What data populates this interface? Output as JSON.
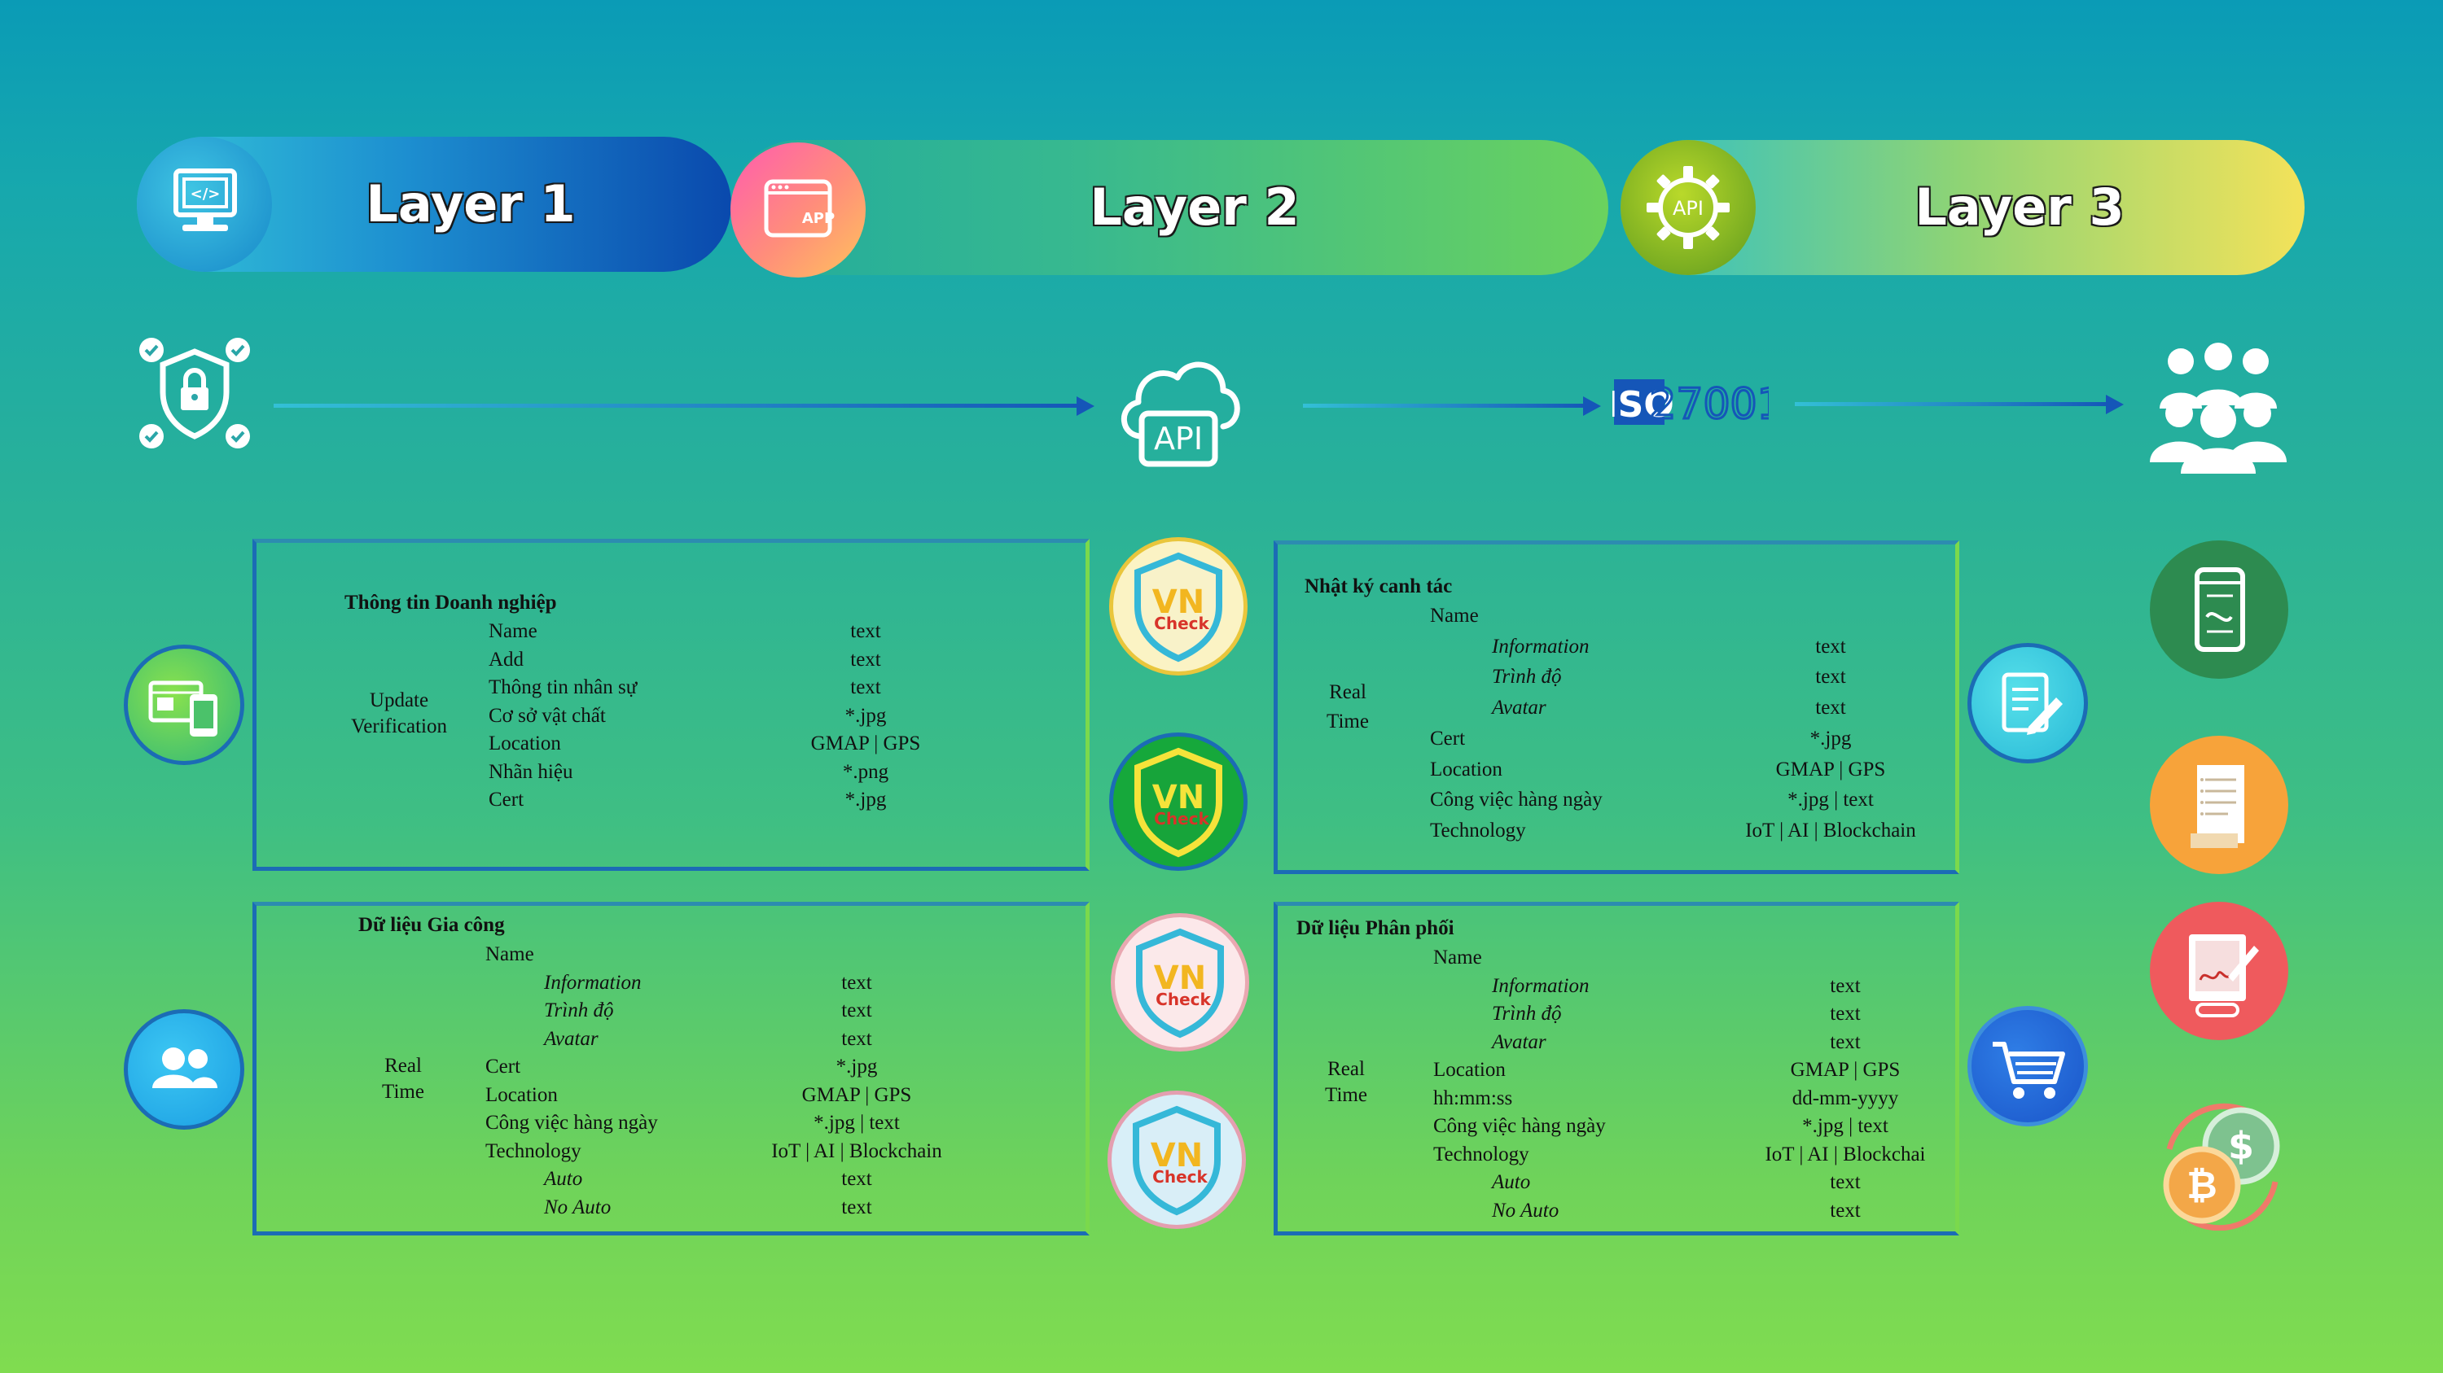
{
  "layers": [
    {
      "title": "Layer 1"
    },
    {
      "title": "Layer 2"
    },
    {
      "title": "Layer 3"
    }
  ],
  "flow": {
    "api_cloud_label": "API",
    "iso_label": "ISO",
    "iso_number": "27001",
    "layer2_gear_label": "API",
    "layer2_app_label": "APP"
  },
  "vncheck": {
    "line1": "VN",
    "line2": "Check"
  },
  "box1": {
    "title": "Thông tin Doanh nghiệp",
    "side_label_1": "Update",
    "side_label_2": "Verification",
    "rows": [
      {
        "field": "Name",
        "type": "text"
      },
      {
        "field": "Add",
        "type": "text"
      },
      {
        "field": "Thông tin nhân sự",
        "type": "text"
      },
      {
        "field": "Cơ sở vật chất",
        "type": "*.jpg"
      },
      {
        "field": "Location",
        "type": "GMAP | GPS"
      },
      {
        "field": "Nhãn hiệu",
        "type": "*.png"
      },
      {
        "field": "Cert",
        "type": "*.jpg"
      }
    ]
  },
  "box2": {
    "title": "Dữ liệu Gia công",
    "side_label_1": "Real",
    "side_label_2": "Time",
    "rows": [
      {
        "field": "Name",
        "type": "",
        "sub": false
      },
      {
        "field": "Information",
        "type": "text",
        "sub": true
      },
      {
        "field": "Trình độ",
        "type": "text",
        "sub": true
      },
      {
        "field": "Avatar",
        "type": "text",
        "sub": true
      },
      {
        "field": "Cert",
        "type": "*.jpg",
        "sub": false
      },
      {
        "field": "Location",
        "type": "GMAP | GPS",
        "sub": false
      },
      {
        "field": "Công việc hàng ngày",
        "type": "*.jpg | text",
        "sub": false
      },
      {
        "field": "Technology",
        "type": "IoT | AI | Blockchain",
        "sub": false
      },
      {
        "field": "Auto",
        "type": "text",
        "sub": true
      },
      {
        "field": "No Auto",
        "type": "text",
        "sub": true
      }
    ]
  },
  "box3": {
    "title": "Nhật ký canh tác",
    "side_label_1": "Real",
    "side_label_2": "Time",
    "rows": [
      {
        "field": "Name",
        "type": "",
        "sub": false
      },
      {
        "field": "Information",
        "type": "text",
        "sub": true
      },
      {
        "field": "Trình độ",
        "type": "text",
        "sub": true
      },
      {
        "field": "Avatar",
        "type": "text",
        "sub": true
      },
      {
        "field": "Cert",
        "type": "*.jpg",
        "sub": false
      },
      {
        "field": "Location",
        "type": "GMAP | GPS",
        "sub": false
      },
      {
        "field": "Công việc hàng ngày",
        "type": "*.jpg | text",
        "sub": false
      },
      {
        "field": "Technology",
        "type": "IoT | AI | Blockchain",
        "sub": false
      }
    ]
  },
  "box4": {
    "title": "Dữ liệu Phân phối",
    "side_label_1": "Real",
    "side_label_2": "Time",
    "rows": [
      {
        "field": "Name",
        "type": "",
        "sub": false
      },
      {
        "field": "Information",
        "type": "text",
        "sub": true
      },
      {
        "field": "Trình độ",
        "type": "text",
        "sub": true
      },
      {
        "field": "Avatar",
        "type": "text",
        "sub": true
      },
      {
        "field": "Location",
        "type": "GMAP | GPS",
        "sub": false
      },
      {
        "field": "hh:mm:ss",
        "type": "dd-mm-yyyy",
        "sub": false
      },
      {
        "field": "Công việc hàng ngày",
        "type": "*.jpg | text",
        "sub": false
      },
      {
        "field": "Technology",
        "type": "IoT | AI | Blockchai",
        "sub": false
      },
      {
        "field": "Auto",
        "type": "text",
        "sub": true
      },
      {
        "field": "No Auto",
        "type": "text",
        "sub": true
      }
    ]
  },
  "icons": {
    "layer1": "code-monitor-icon",
    "layer2": "app-window-icon",
    "layer3": "api-gear-icon",
    "security": "security-lock-icon",
    "cloud": "api-cloud-icon",
    "iso": "iso-27001-icon",
    "users": "users-group-icon",
    "box1_left": "id-card-mobile-icon",
    "box2_left": "users-icon",
    "box3_right": "notepad-pen-icon",
    "box4_right": "shopping-cart-icon",
    "right_1": "mobile-document-icon",
    "right_2": "receipt-icon",
    "right_3": "signature-tablet-icon",
    "right_4": "crypto-coins-icon"
  },
  "colors": {
    "box_border": "#1b6cb5",
    "arrow": "#1556b8",
    "layer1_pill": "#0a4fae",
    "layer2_pill": "#6fd35a",
    "layer3_pill": "#f2e15e"
  }
}
